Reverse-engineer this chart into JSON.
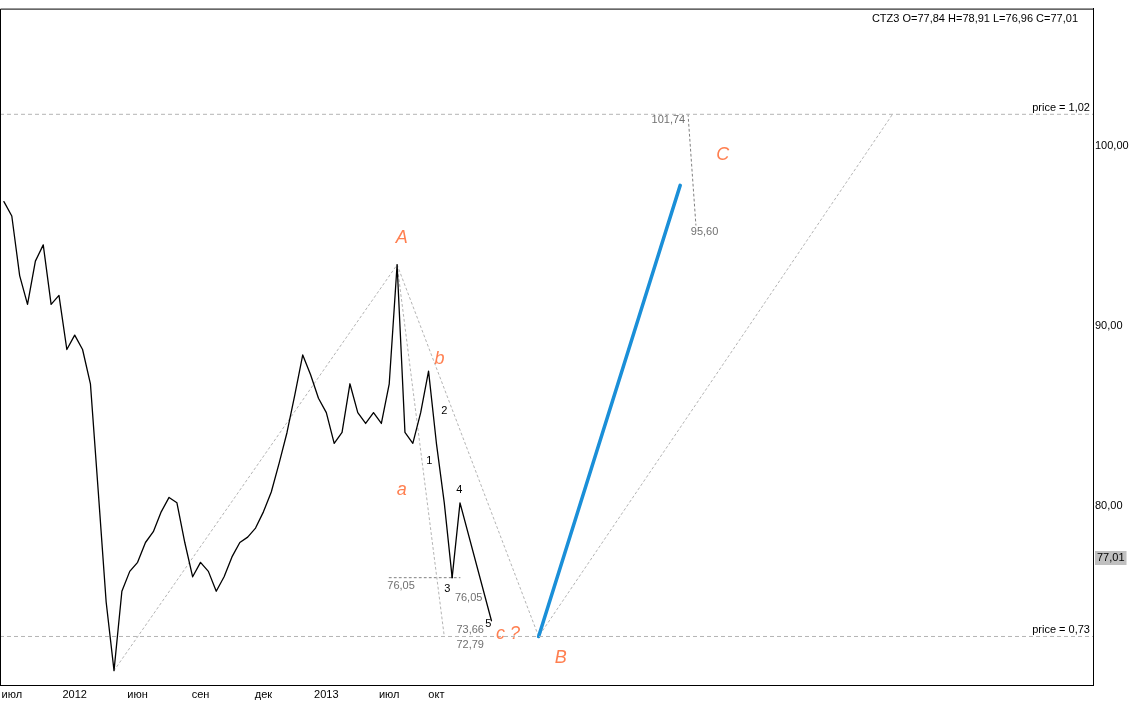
{
  "chart_data": {
    "type": "line",
    "title": "CTZ3 O=77,84 H=78,91 L=76,96 C=77,01",
    "categories": [
      null,
      "июл",
      null,
      null,
      null,
      null,
      null,
      null,
      null,
      "2012",
      null,
      null,
      null,
      null,
      null,
      null,
      null,
      "июн",
      null,
      null,
      null,
      null,
      null,
      null,
      null,
      "сен",
      null,
      null,
      null,
      null,
      null,
      null,
      null,
      "дек",
      null,
      null,
      null,
      null,
      null,
      null,
      null,
      "2013",
      null,
      null,
      null,
      null,
      null,
      null,
      null,
      "июл",
      null,
      null,
      null,
      null,
      null,
      "окт",
      null,
      null,
      null,
      null,
      null,
      null,
      null,
      null,
      null,
      null,
      null,
      null,
      null,
      null,
      null,
      null,
      null,
      null,
      null,
      null,
      null,
      null,
      null,
      null,
      null,
      null,
      null,
      null,
      null,
      null,
      null,
      null,
      null,
      null,
      null,
      null,
      null,
      null,
      null,
      null,
      null,
      null,
      null,
      null,
      null,
      null,
      null,
      null,
      null,
      null,
      null,
      null,
      null,
      null,
      null,
      null,
      null,
      null,
      null,
      null,
      null,
      null,
      null,
      null,
      null,
      null,
      null,
      null,
      null,
      null,
      null,
      null,
      null,
      null,
      null,
      null,
      null,
      null,
      null,
      null,
      null,
      null,
      null
    ],
    "ylim": [
      70.1,
      107.6
    ],
    "yticks": [
      {
        "value": 80,
        "label": "80,00"
      },
      {
        "value": 90,
        "label": "90,00"
      },
      {
        "value": 100,
        "label": "100,00"
      }
    ],
    "marker": "none",
    "series": [
      {
        "color": "#000000",
        "line_style": "solid",
        "values": [
          96.9,
          96.1,
          92.8,
          91.2,
          93.6,
          94.5,
          91.2,
          91.7,
          88.7,
          89.5,
          88.7,
          86.8,
          80.8,
          74.7,
          70.9,
          75.3,
          76.4,
          76.9,
          78.0,
          78.6,
          79.7,
          80.5,
          80.2,
          78.0,
          76.1,
          76.9,
          76.4,
          75.3,
          76.1,
          77.2,
          78.0,
          78.3,
          78.8,
          79.7,
          80.8,
          82.4,
          84.1,
          86.2,
          88.4,
          87.3,
          86.0,
          85.2,
          83.5,
          84.1,
          86.8,
          85.2,
          84.6,
          85.2,
          84.6,
          86.8,
          93.4,
          84.1,
          83.5,
          85.2,
          87.5,
          83.5,
          80.2,
          76.05,
          null,
          null,
          null,
          null,
          null,
          null,
          null,
          null,
          null,
          null,
          null,
          null,
          null,
          null,
          null,
          null,
          null,
          null,
          null,
          null,
          null,
          null,
          null,
          null,
          null,
          null,
          null,
          null,
          null,
          null,
          null,
          null,
          null,
          null,
          null,
          null,
          null,
          null,
          null,
          null,
          null,
          null,
          null,
          null,
          null,
          null,
          null,
          null,
          null,
          null,
          null,
          null,
          null,
          null,
          null,
          null,
          null,
          null,
          null,
          null,
          null,
          null,
          null,
          null,
          null,
          null,
          null,
          null,
          null,
          null,
          null,
          null,
          null,
          null,
          null,
          null,
          null,
          null,
          null,
          null,
          null
        ]
      },
      {
        "color": "#000000",
        "line_style": "solid",
        "values": [
          null,
          null,
          null,
          null,
          null,
          null,
          null,
          null,
          null,
          null,
          null,
          null,
          null,
          null,
          null,
          null,
          null,
          null,
          null,
          null,
          null,
          null,
          null,
          null,
          null,
          null,
          null,
          null,
          null,
          null,
          null,
          null,
          null,
          null,
          null,
          null,
          null,
          null,
          null,
          null,
          null,
          null,
          null,
          null,
          null,
          null,
          null,
          null,
          null,
          null,
          null,
          null,
          null,
          null,
          null,
          null,
          null,
          76.05,
          80.2,
          null,
          null,
          null,
          73.66,
          null,
          null,
          null,
          null,
          null,
          null,
          null,
          null,
          null,
          null,
          null,
          null,
          null,
          null,
          null,
          null,
          null,
          null,
          null,
          null,
          null,
          null,
          null,
          null,
          null,
          null,
          null,
          null,
          null,
          null,
          null,
          null,
          null,
          null,
          null,
          null,
          null,
          null,
          null,
          null,
          null,
          null,
          null,
          null,
          null,
          null,
          null,
          null,
          null,
          null,
          null,
          null,
          null,
          null,
          null,
          null,
          null,
          null,
          null,
          null,
          null,
          null,
          null,
          null,
          null,
          null,
          null,
          null,
          null,
          null,
          null,
          null,
          null,
          null,
          null,
          null
        ]
      },
      {
        "color": "#1a8fd8",
        "line_style": "solid",
        "values": [
          null,
          null,
          null,
          null,
          null,
          null,
          null,
          null,
          null,
          null,
          null,
          null,
          null,
          null,
          null,
          null,
          null,
          null,
          null,
          null,
          null,
          null,
          null,
          null,
          null,
          null,
          null,
          null,
          null,
          null,
          null,
          null,
          null,
          null,
          null,
          null,
          null,
          null,
          null,
          null,
          null,
          null,
          null,
          null,
          null,
          null,
          null,
          null,
          null,
          null,
          null,
          null,
          null,
          null,
          null,
          null,
          null,
          null,
          null,
          null,
          null,
          null,
          null,
          null,
          null,
          null,
          null,
          null,
          72.79,
          null,
          null,
          null,
          null,
          null,
          null,
          null,
          null,
          null,
          null,
          null,
          null,
          null,
          null,
          null,
          null,
          null,
          97.8,
          null,
          null,
          null,
          null,
          null,
          null,
          null,
          null,
          null,
          null,
          null,
          null,
          null,
          null,
          null,
          null,
          null,
          null,
          null,
          null,
          null,
          null,
          null,
          null,
          null,
          null,
          null,
          null,
          null,
          null,
          null,
          null,
          null,
          null,
          null,
          null,
          null,
          null,
          null,
          null,
          null,
          null,
          null,
          null,
          null,
          null,
          null,
          null,
          null,
          null,
          null,
          null
        ]
      },
      {
        "color": "#b4b4b4",
        "line_style": "dotted",
        "values": [
          null,
          null,
          null,
          null,
          null,
          null,
          null,
          null,
          null,
          null,
          null,
          null,
          null,
          null,
          70.9,
          null,
          null,
          null,
          null,
          null,
          null,
          null,
          null,
          null,
          null,
          null,
          null,
          null,
          null,
          null,
          null,
          null,
          null,
          null,
          null,
          null,
          null,
          null,
          null,
          null,
          null,
          null,
          null,
          null,
          null,
          null,
          null,
          null,
          null,
          null,
          93.4,
          null,
          null,
          null,
          null,
          null,
          null,
          null,
          null,
          null,
          null,
          null,
          null,
          null,
          null,
          null,
          null,
          null,
          72.79,
          null,
          null,
          null,
          null,
          null,
          null,
          null,
          null,
          null,
          null,
          null,
          null,
          null,
          null,
          null,
          null,
          null,
          null,
          null,
          null,
          null,
          null,
          null,
          null,
          null,
          null,
          null,
          null,
          null,
          null,
          null,
          null,
          null,
          null,
          null,
          null,
          null,
          null,
          null,
          null,
          null,
          null,
          null,
          null,
          101.74,
          null,
          null,
          null,
          null,
          null,
          null,
          null,
          null,
          null,
          null,
          null,
          null,
          null,
          null,
          null,
          null,
          null,
          null,
          null,
          null,
          null,
          null,
          null,
          null,
          null
        ]
      },
      {
        "color": "#b4b4b4",
        "line_style": "dotted",
        "values": [
          null,
          null,
          null,
          null,
          null,
          null,
          null,
          null,
          null,
          null,
          null,
          null,
          null,
          null,
          null,
          null,
          null,
          null,
          null,
          null,
          null,
          null,
          null,
          null,
          null,
          null,
          null,
          null,
          null,
          null,
          null,
          null,
          null,
          null,
          null,
          null,
          null,
          null,
          null,
          null,
          null,
          null,
          null,
          null,
          null,
          null,
          null,
          null,
          null,
          null,
          93.4,
          null,
          null,
          null,
          null,
          null,
          72.79,
          null,
          null,
          null,
          null,
          null,
          null,
          null,
          null,
          null,
          null,
          null,
          null,
          null,
          null,
          null,
          null,
          null,
          null,
          null,
          null,
          null,
          null,
          null,
          null,
          null,
          null,
          null,
          null,
          null,
          null,
          null,
          null,
          null,
          null,
          null,
          null,
          null,
          null,
          null,
          null,
          null,
          null,
          null,
          null,
          null,
          null,
          null,
          null,
          null,
          null,
          null,
          null,
          null,
          null,
          null,
          null,
          null,
          null,
          null,
          null,
          null,
          null,
          null,
          null,
          null,
          null,
          null,
          null,
          null,
          null,
          null,
          null,
          null,
          null,
          null,
          null,
          null,
          null,
          null,
          null,
          null,
          null
        ]
      },
      {
        "color": "#808080",
        "line_style": "dotted",
        "values": [
          null,
          null,
          null,
          null,
          null,
          null,
          null,
          null,
          null,
          null,
          null,
          null,
          null,
          null,
          null,
          null,
          null,
          null,
          null,
          null,
          null,
          null,
          null,
          null,
          null,
          null,
          null,
          null,
          null,
          null,
          null,
          null,
          null,
          null,
          null,
          null,
          null,
          null,
          null,
          null,
          null,
          null,
          null,
          null,
          null,
          null,
          null,
          null,
          null,
          76.05,
          null,
          null,
          null,
          null,
          null,
          null,
          null,
          null,
          76.05,
          null,
          null,
          null,
          null,
          null,
          null,
          null,
          null,
          null,
          null,
          null,
          null,
          null,
          null,
          null,
          null,
          null,
          null,
          null,
          null,
          null,
          null,
          null,
          null,
          null,
          null,
          null,
          null,
          null,
          null,
          null,
          null,
          null,
          null,
          null,
          null,
          null,
          null,
          null,
          null,
          null,
          null,
          null,
          null,
          null,
          null,
          null,
          null,
          null,
          null,
          null,
          null,
          null,
          null,
          null,
          null,
          null,
          null,
          null,
          null,
          null,
          null,
          null,
          null,
          null,
          null,
          null,
          null,
          null,
          null,
          null,
          null,
          null,
          null,
          null,
          null,
          null,
          null,
          null,
          null
        ]
      },
      {
        "color": "#808080",
        "line_style": "dotted",
        "values": [
          null,
          null,
          null,
          null,
          null,
          null,
          null,
          null,
          null,
          null,
          null,
          null,
          null,
          null,
          null,
          null,
          null,
          null,
          null,
          null,
          null,
          null,
          null,
          null,
          null,
          null,
          null,
          null,
          null,
          null,
          null,
          null,
          null,
          null,
          null,
          null,
          null,
          null,
          null,
          null,
          null,
          null,
          null,
          null,
          null,
          null,
          null,
          null,
          null,
          null,
          null,
          null,
          null,
          null,
          null,
          null,
          null,
          null,
          null,
          null,
          null,
          null,
          null,
          null,
          null,
          null,
          null,
          null,
          null,
          null,
          null,
          null,
          null,
          null,
          null,
          null,
          null,
          null,
          null,
          null,
          null,
          null,
          null,
          null,
          null,
          null,
          null,
          101.74,
          95.6,
          null,
          null,
          null,
          null,
          null,
          null,
          null,
          null,
          null,
          null,
          null,
          null,
          null,
          null,
          null,
          null,
          null,
          null,
          null,
          null,
          null,
          null,
          null,
          null,
          null,
          null,
          null,
          null,
          null,
          null,
          null,
          null,
          null,
          null,
          null,
          null,
          null,
          null,
          null,
          null,
          null,
          null,
          null,
          null,
          null,
          null,
          null,
          null,
          null,
          null
        ]
      }
    ],
    "ref_lines": [
      {
        "axis": "y",
        "value": 101.74,
        "color": "#b4b4b4",
        "line_style": "dashed"
      },
      {
        "axis": "y",
        "value": 72.79,
        "color": "#b4b4b4",
        "line_style": "dashed"
      }
    ],
    "annotations": [
      "A",
      "a",
      "b",
      "B",
      "C",
      "c ?",
      "1",
      "2",
      "3",
      "4",
      "5",
      "76,05",
      "76,05",
      "73,66",
      "72,79",
      "101,74",
      "95,60",
      "price = 1,02",
      "price = 0,73",
      "77,01"
    ]
  }
}
